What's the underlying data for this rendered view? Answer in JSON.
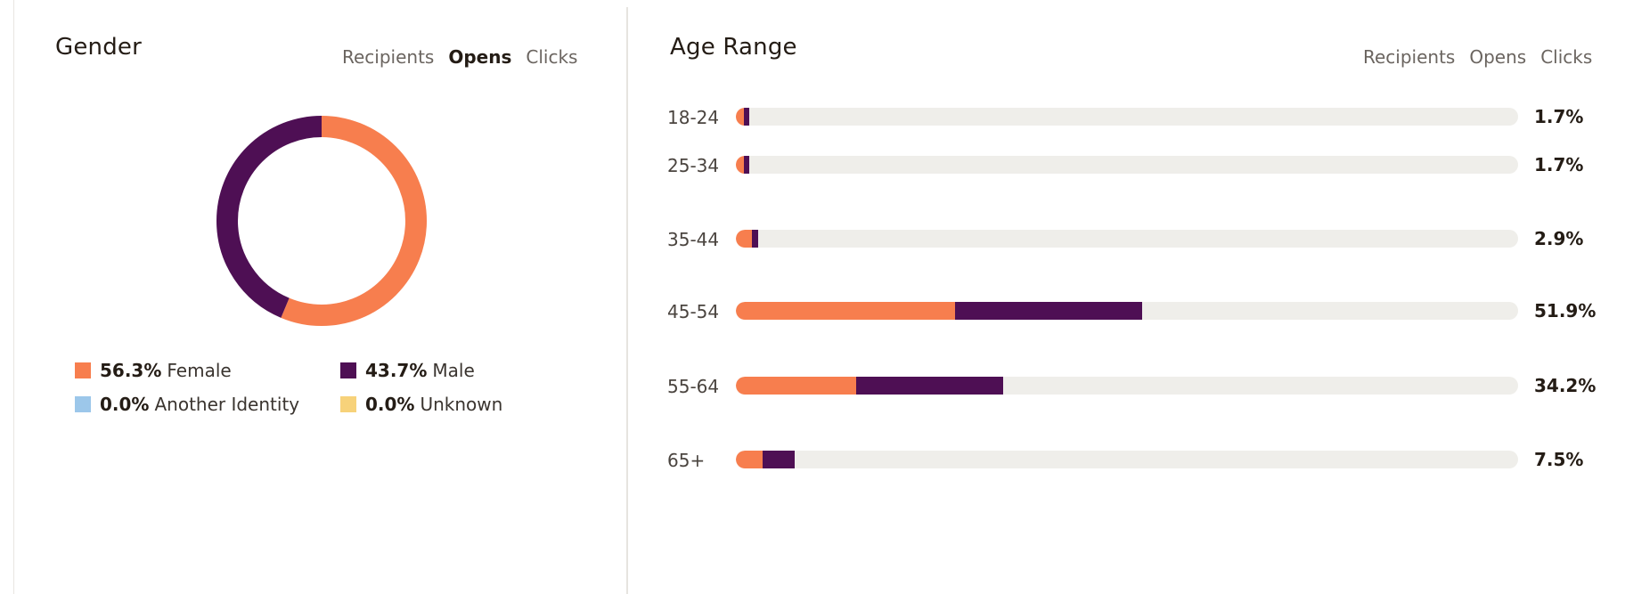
{
  "gender": {
    "title": "Gender",
    "tabs": [
      {
        "label": "Recipients",
        "active": false
      },
      {
        "label": "Opens",
        "active": true
      },
      {
        "label": "Clicks",
        "active": false
      }
    ],
    "legend": [
      {
        "pct": "56.3%",
        "label": "Female",
        "color": "#f77e4e",
        "value": 56.3
      },
      {
        "pct": "43.7%",
        "label": "Male",
        "color": "#4e0f54",
        "value": 43.7
      },
      {
        "pct": "0.0%",
        "label": "Another Identity",
        "color": "#9cc7ea",
        "value": 0.0
      },
      {
        "pct": "0.0%",
        "label": "Unknown",
        "color": "#f7d27a",
        "value": 0.0
      }
    ]
  },
  "age": {
    "title": "Age Range",
    "tabs": [
      {
        "label": "Recipients",
        "active": false
      },
      {
        "label": "Opens",
        "active": false
      },
      {
        "label": "Clicks",
        "active": false
      }
    ],
    "rows": [
      {
        "label": "18-24",
        "pct": "1.7%",
        "value": 1.7,
        "female_share": 0.6
      },
      {
        "label": "25-34",
        "pct": "1.7%",
        "value": 1.7,
        "female_share": 0.6
      },
      {
        "label": "35-44",
        "pct": "2.9%",
        "value": 2.9,
        "female_share": 0.7
      },
      {
        "label": "45-54",
        "pct": "51.9%",
        "value": 51.9,
        "female_share": 0.54
      },
      {
        "label": "55-64",
        "pct": "34.2%",
        "value": 34.2,
        "female_share": 0.45
      },
      {
        "label": "65+",
        "pct": "7.5%",
        "value": 7.5,
        "female_share": 0.45
      }
    ]
  },
  "colors": {
    "female": "#f77e4e",
    "male": "#4e0f54",
    "track": "#efeeea"
  }
}
